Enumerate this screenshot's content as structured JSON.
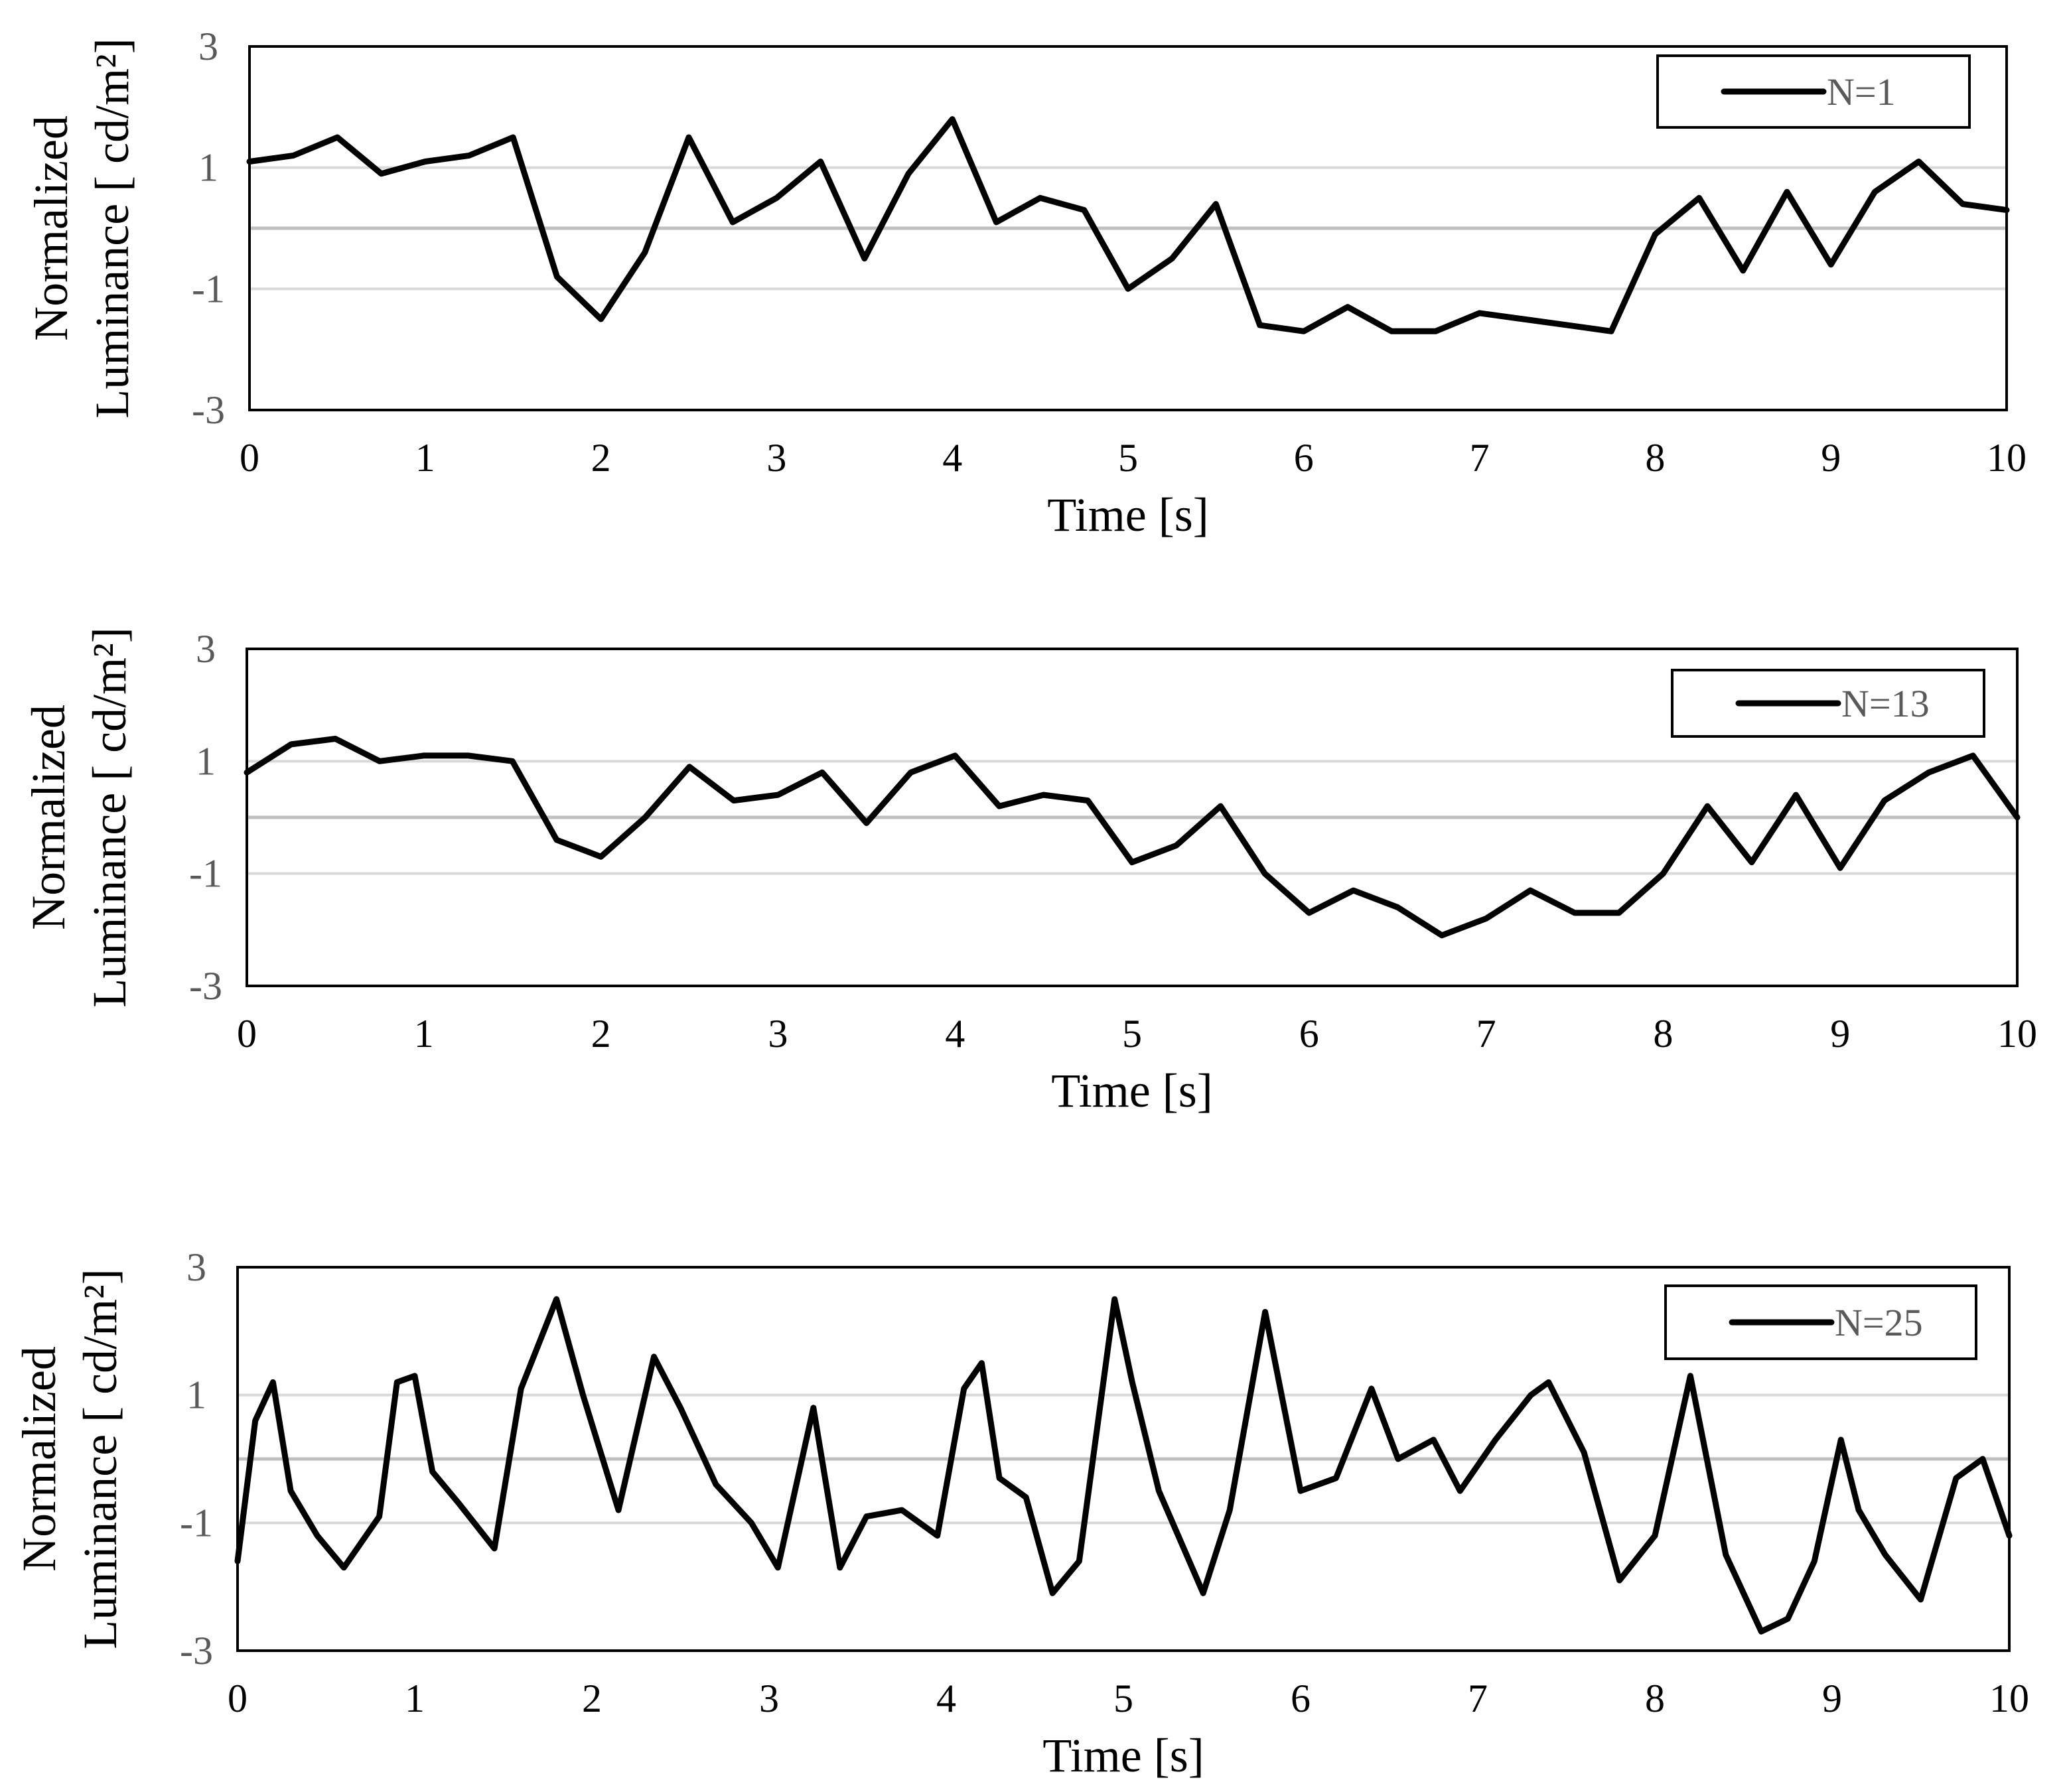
{
  "colors": {
    "line": "#000000",
    "gridline": "#d9d9d9",
    "zero_line": "#bfbfbf",
    "frame": "#000000",
    "tick_label": "#595959"
  },
  "chart_data": [
    {
      "type": "line",
      "xlabel": "Time [s]",
      "ylabel_line1": "Normalized",
      "ylabel_line2": "Luminance [ cd/m²]",
      "xlim": [
        0,
        10
      ],
      "ylim": [
        -3,
        3
      ],
      "x_ticks": [
        "0",
        "1",
        "2",
        "3",
        "4",
        "5",
        "6",
        "7",
        "8",
        "9",
        "10"
      ],
      "y_ticks": [
        "3",
        "1",
        "-1",
        "-3"
      ],
      "grid": true,
      "legend_position": "top-right",
      "series": [
        {
          "name": "N=1",
          "x": [
            0,
            0.25,
            0.5,
            0.75,
            1,
            1.25,
            1.5,
            1.75,
            2,
            2.25,
            2.5,
            2.75,
            3,
            3.25,
            3.5,
            3.75,
            4,
            4.25,
            4.5,
            4.75,
            5,
            5.25,
            5.5,
            5.75,
            6,
            6.25,
            6.5,
            6.75,
            7,
            7.25,
            7.5,
            7.75,
            8,
            8.25,
            8.5,
            8.75,
            9,
            9.25,
            9.5,
            9.75,
            10
          ],
          "y": [
            1.1,
            1.2,
            1.5,
            0.9,
            1.1,
            1.2,
            1.5,
            -0.8,
            -1.5,
            -0.4,
            1.5,
            0.1,
            0.5,
            1.1,
            -0.5,
            0.9,
            1.8,
            0.1,
            0.5,
            0.3,
            -1.0,
            -0.5,
            0.4,
            -1.6,
            -1.7,
            -1.3,
            -1.7,
            -1.7,
            -1.4,
            -1.5,
            -1.6,
            -1.7,
            -0.1,
            0.5,
            -0.7,
            0.6,
            -0.6,
            0.6,
            1.1,
            0.4,
            0.3
          ]
        }
      ]
    },
    {
      "type": "line",
      "xlabel": "Time [s]",
      "ylabel_line1": "Normalized",
      "ylabel_line2": "Luminance [ cd/m²]",
      "xlim": [
        0,
        10
      ],
      "ylim": [
        -3,
        3
      ],
      "x_ticks": [
        "0",
        "1",
        "2",
        "3",
        "4",
        "5",
        "6",
        "7",
        "8",
        "9",
        "10"
      ],
      "y_ticks": [
        "3",
        "1",
        "-1",
        "-3"
      ],
      "grid": true,
      "legend_position": "top-right",
      "series": [
        {
          "name": "N=13",
          "x": [
            0,
            0.25,
            0.5,
            0.75,
            1,
            1.25,
            1.5,
            1.75,
            2,
            2.25,
            2.5,
            2.75,
            3,
            3.25,
            3.5,
            3.75,
            4,
            4.25,
            4.5,
            4.75,
            5,
            5.25,
            5.5,
            5.75,
            6,
            6.25,
            6.5,
            6.75,
            7,
            7.25,
            7.5,
            7.75,
            8,
            8.25,
            8.5,
            8.75,
            9,
            9.25,
            9.5,
            9.75,
            10
          ],
          "y": [
            0.8,
            1.3,
            1.4,
            1.0,
            1.1,
            1.1,
            1.0,
            -0.4,
            -0.7,
            0.0,
            0.9,
            0.3,
            0.4,
            0.8,
            -0.1,
            0.8,
            1.1,
            0.2,
            0.4,
            0.3,
            -0.8,
            -0.5,
            0.2,
            -1.0,
            -1.7,
            -1.3,
            -1.6,
            -2.1,
            -1.8,
            -1.3,
            -1.7,
            -1.7,
            -1.0,
            0.2,
            -0.8,
            0.4,
            -0.9,
            0.3,
            0.8,
            1.1,
            0.0
          ]
        }
      ]
    },
    {
      "type": "line",
      "xlabel": "Time [s]",
      "ylabel_line1": "Normalized",
      "ylabel_line2": "Luminance [ cd/m²]",
      "xlim": [
        0,
        10
      ],
      "ylim": [
        -3,
        3
      ],
      "x_ticks": [
        "0",
        "1",
        "2",
        "3",
        "4",
        "5",
        "6",
        "7",
        "8",
        "9",
        "10"
      ],
      "y_ticks": [
        "3",
        "1",
        "-1",
        "-3"
      ],
      "grid": true,
      "legend_position": "top-right",
      "series": [
        {
          "name": "N=25",
          "x": [
            0,
            0.1,
            0.2,
            0.3,
            0.45,
            0.6,
            0.8,
            0.9,
            1.0,
            1.1,
            1.25,
            1.45,
            1.6,
            1.8,
            1.95,
            2.15,
            2.35,
            2.5,
            2.7,
            2.9,
            3.05,
            3.25,
            3.4,
            3.55,
            3.75,
            3.95,
            4.1,
            4.2,
            4.3,
            4.45,
            4.6,
            4.75,
            4.95,
            5.05,
            5.2,
            5.45,
            5.6,
            5.8,
            6.0,
            6.2,
            6.4,
            6.55,
            6.75,
            6.9,
            7.1,
            7.3,
            7.4,
            7.6,
            7.8,
            8.0,
            8.2,
            8.4,
            8.6,
            8.75,
            8.9,
            9.05,
            9.15,
            9.3,
            9.5,
            9.7,
            9.85,
            10
          ],
          "y": [
            -1.6,
            0.6,
            1.2,
            -0.5,
            -1.2,
            -1.7,
            -0.9,
            1.2,
            1.3,
            -0.2,
            -0.7,
            -1.4,
            1.1,
            2.5,
            1.0,
            -0.8,
            1.6,
            0.8,
            -0.4,
            -1.0,
            -1.7,
            0.8,
            -1.7,
            -0.9,
            -0.8,
            -1.2,
            1.1,
            1.5,
            -0.3,
            -0.6,
            -2.1,
            -1.6,
            2.5,
            1.2,
            -0.5,
            -2.1,
            -0.8,
            2.3,
            -0.5,
            -0.3,
            1.1,
            0.0,
            0.3,
            -0.5,
            0.3,
            1.0,
            1.2,
            0.1,
            -1.9,
            -1.2,
            1.3,
            -1.5,
            -2.7,
            -2.5,
            -1.6,
            0.3,
            -0.8,
            -1.5,
            -2.2,
            -0.3,
            0.0,
            -1.2
          ]
        }
      ]
    }
  ]
}
